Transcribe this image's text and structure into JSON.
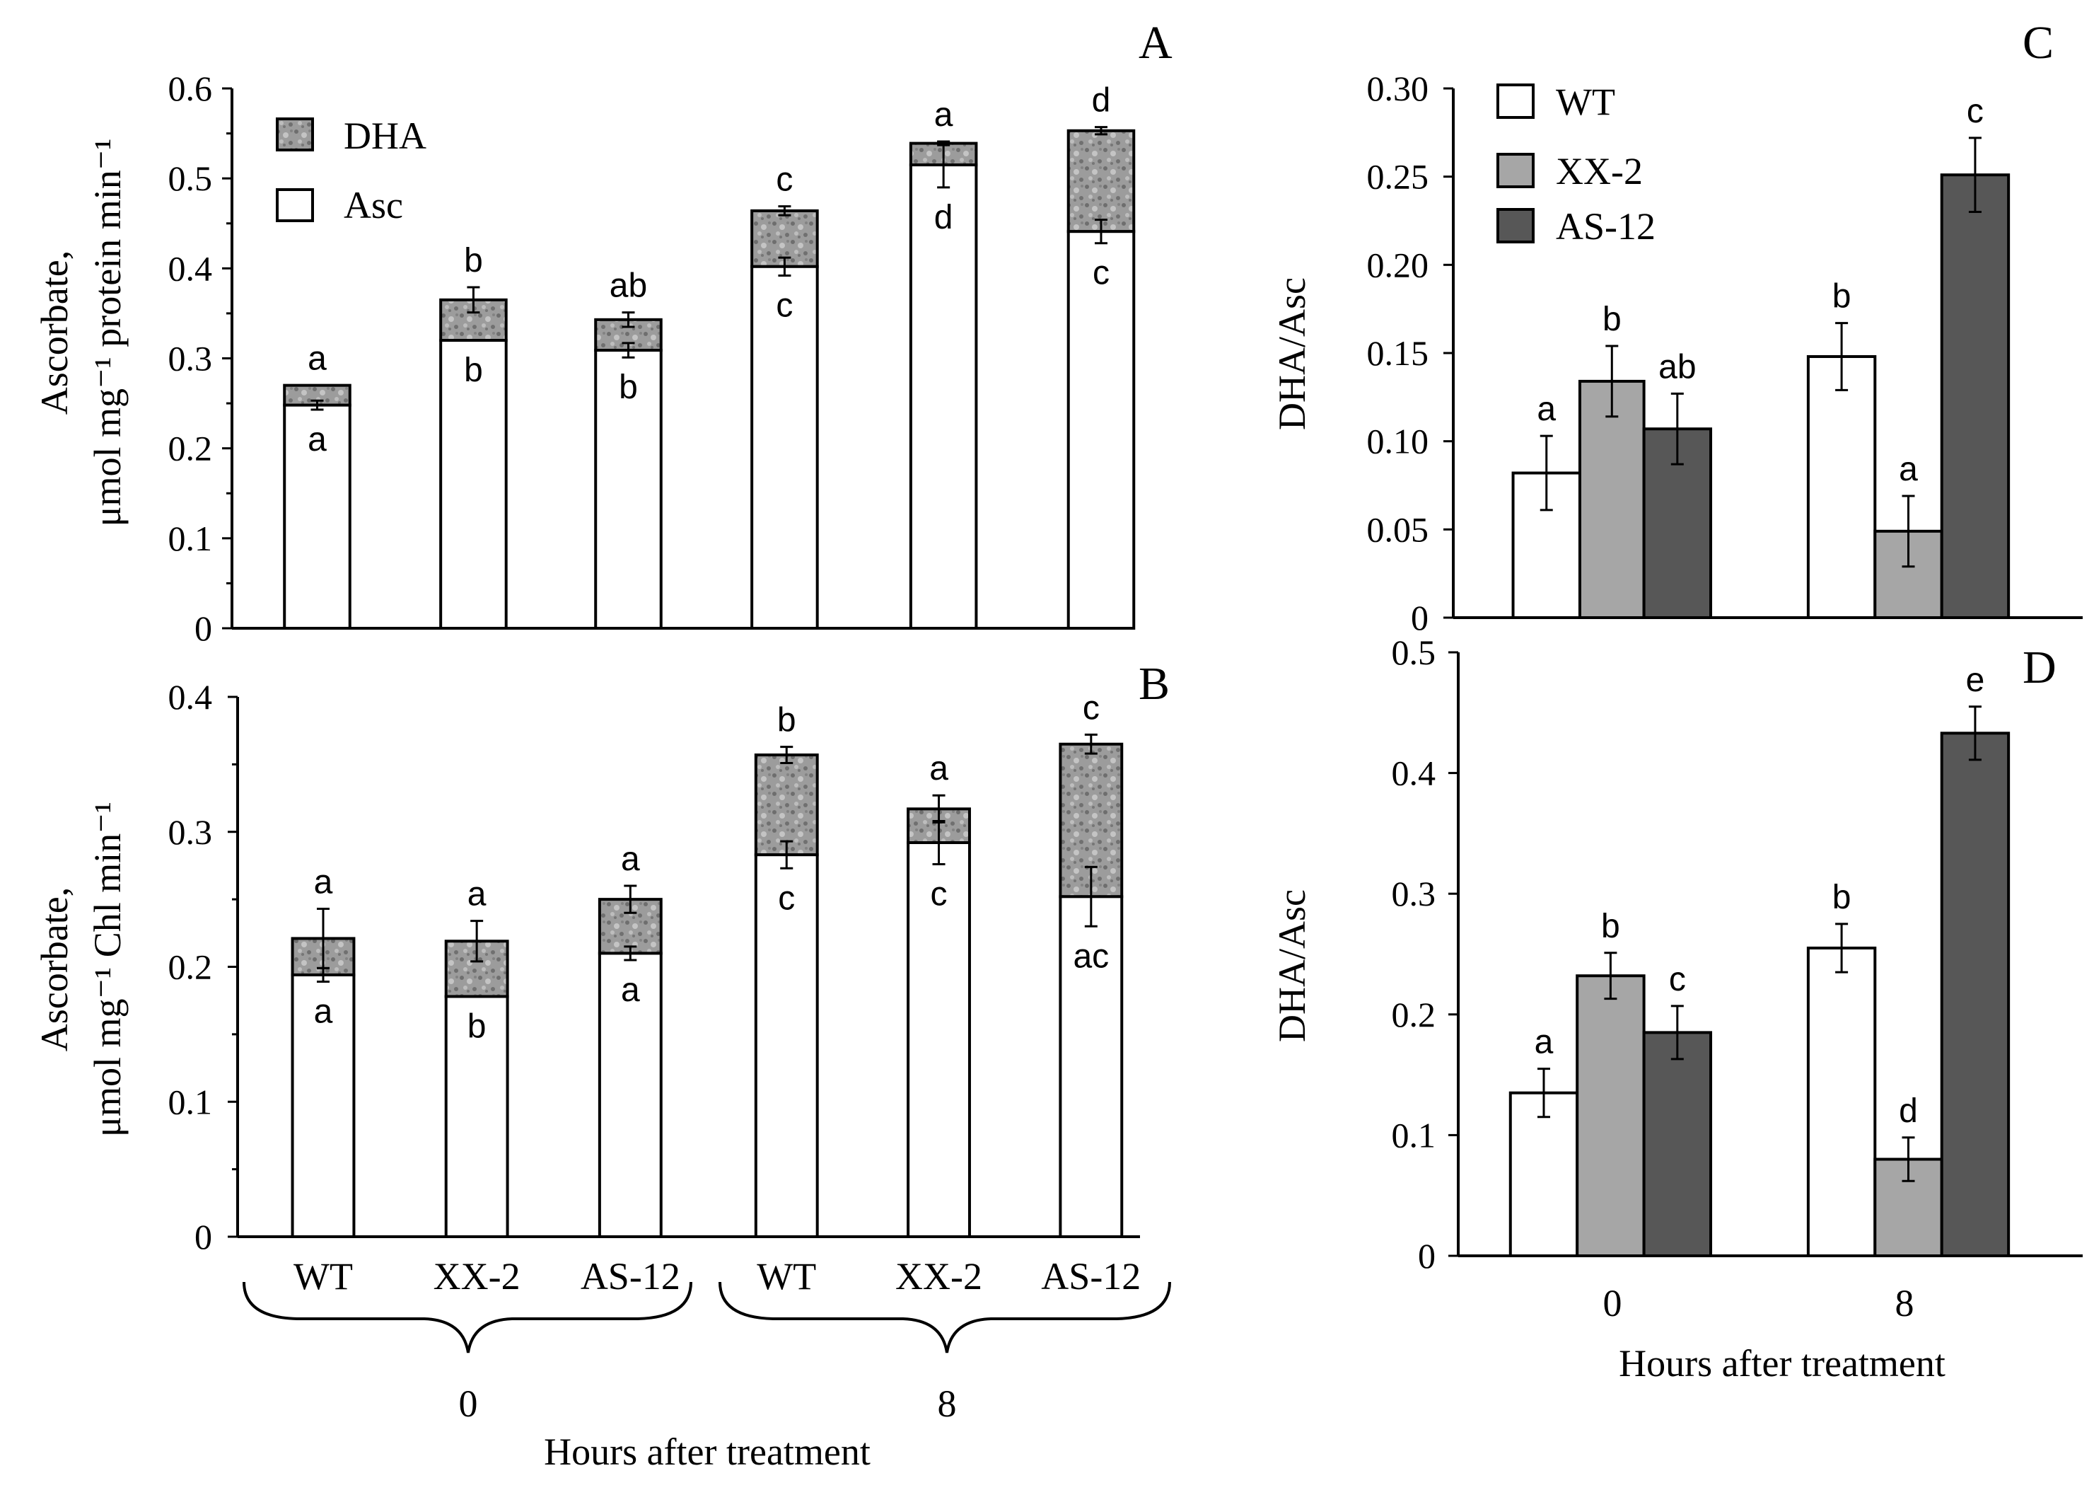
{
  "colors": {
    "wt": "#ffffff",
    "xx2": "#a6a6a6",
    "as12": "#575757",
    "dha": "#a0a0a0",
    "axis": "#000000"
  },
  "shared": {
    "x_groups": [
      "0",
      "8"
    ],
    "x_title": "Hours after treatment",
    "genotypes": [
      "WT",
      "XX-2",
      "AS-12"
    ]
  },
  "chart_data": [
    {
      "id": "A",
      "panel": "A",
      "type": "bar",
      "stacked": true,
      "categories": [
        "WT",
        "XX-2",
        "AS-12",
        "WT",
        "XX-2",
        "AS-12"
      ],
      "groups": [
        "0",
        "8"
      ],
      "ylabel1": "Ascorbate,",
      "ylabel2": "μmol mg⁻¹ protein min⁻¹",
      "ylim": [
        0,
        0.6
      ],
      "yticks": [
        "0",
        "0.1",
        "0.2",
        "0.3",
        "0.4",
        "0.5",
        "0.6"
      ],
      "legend": [
        {
          "name": "DHA",
          "pattern": "speckled"
        },
        {
          "name": "Asc",
          "pattern": "white"
        }
      ],
      "series": [
        {
          "name": "Asc",
          "values": [
            0.248,
            0.32,
            0.309,
            0.402,
            0.515,
            0.441
          ],
          "err": [
            0.005,
            0.0,
            0.008,
            0.01,
            0.025,
            0.013
          ],
          "labels": [
            "a",
            "b",
            "b",
            "c",
            "d",
            "c"
          ]
        },
        {
          "name": "DHA",
          "values": [
            0.022,
            0.045,
            0.034,
            0.062,
            0.024,
            0.112
          ],
          "err": [
            0.0,
            0.014,
            0.008,
            0.005,
            0.002,
            0.004
          ],
          "labels": [
            "a",
            "b",
            "ab",
            "c",
            "a",
            "d"
          ]
        }
      ]
    },
    {
      "id": "B",
      "panel": "B",
      "type": "bar",
      "stacked": true,
      "categories": [
        "WT",
        "XX-2",
        "AS-12",
        "WT",
        "XX-2",
        "AS-12"
      ],
      "groups": [
        "0",
        "8"
      ],
      "ylabel1": "Ascorbate,",
      "ylabel2": "μmol mg⁻¹ Chl min⁻¹",
      "ylim": [
        0,
        0.4
      ],
      "yticks": [
        "0",
        "0.1",
        "0.2",
        "0.3",
        "0.4"
      ],
      "series": [
        {
          "name": "Asc",
          "values": [
            0.194,
            0.178,
            0.21,
            0.283,
            0.292,
            0.252
          ],
          "err": [
            0.005,
            0.0,
            0.005,
            0.01,
            0.016,
            0.022
          ],
          "labels": [
            "a",
            "b",
            "a",
            "c",
            "c",
            "ac"
          ]
        },
        {
          "name": "DHA",
          "values": [
            0.027,
            0.041,
            0.04,
            0.074,
            0.025,
            0.113
          ],
          "err": [
            0.022,
            0.015,
            0.01,
            0.006,
            0.01,
            0.007
          ],
          "labels": [
            "a",
            "a",
            "a",
            "b",
            "a",
            "c"
          ]
        }
      ]
    },
    {
      "id": "C",
      "panel": "C",
      "type": "bar",
      "categories": [
        "0",
        "8"
      ],
      "ylabel": "DHA/Asc",
      "ylim": [
        0,
        0.3
      ],
      "yticks": [
        "0",
        "0.05",
        "0.10",
        "0.15",
        "0.20",
        "0.25",
        "0.30"
      ],
      "legend": [
        {
          "name": "WT"
        },
        {
          "name": "XX-2"
        },
        {
          "name": "AS-12"
        }
      ],
      "series": [
        {
          "name": "WT",
          "values": [
            0.082,
            0.148
          ],
          "err": [
            0.021,
            0.019
          ],
          "labels": [
            "a",
            "b"
          ]
        },
        {
          "name": "XX-2",
          "values": [
            0.134,
            0.049
          ],
          "err": [
            0.02,
            0.02
          ],
          "labels": [
            "b",
            "a"
          ]
        },
        {
          "name": "AS-12",
          "values": [
            0.107,
            0.251
          ],
          "err": [
            0.02,
            0.021
          ],
          "labels": [
            "ab",
            "c"
          ]
        }
      ]
    },
    {
      "id": "D",
      "panel": "D",
      "type": "bar",
      "categories": [
        "0",
        "8"
      ],
      "ylabel": "DHA/Asc",
      "ylim": [
        0,
        0.5
      ],
      "yticks": [
        "0",
        "0.1",
        "0.2",
        "0.3",
        "0.4",
        "0.5"
      ],
      "series": [
        {
          "name": "WT",
          "values": [
            0.135,
            0.255
          ],
          "err": [
            0.02,
            0.02
          ],
          "labels": [
            "a",
            "b"
          ]
        },
        {
          "name": "XX-2",
          "values": [
            0.232,
            0.08
          ],
          "err": [
            0.019,
            0.018
          ],
          "labels": [
            "b",
            "d"
          ]
        },
        {
          "name": "AS-12",
          "values": [
            0.185,
            0.433
          ],
          "err": [
            0.022,
            0.022
          ],
          "labels": [
            "c",
            "e"
          ]
        }
      ]
    }
  ]
}
